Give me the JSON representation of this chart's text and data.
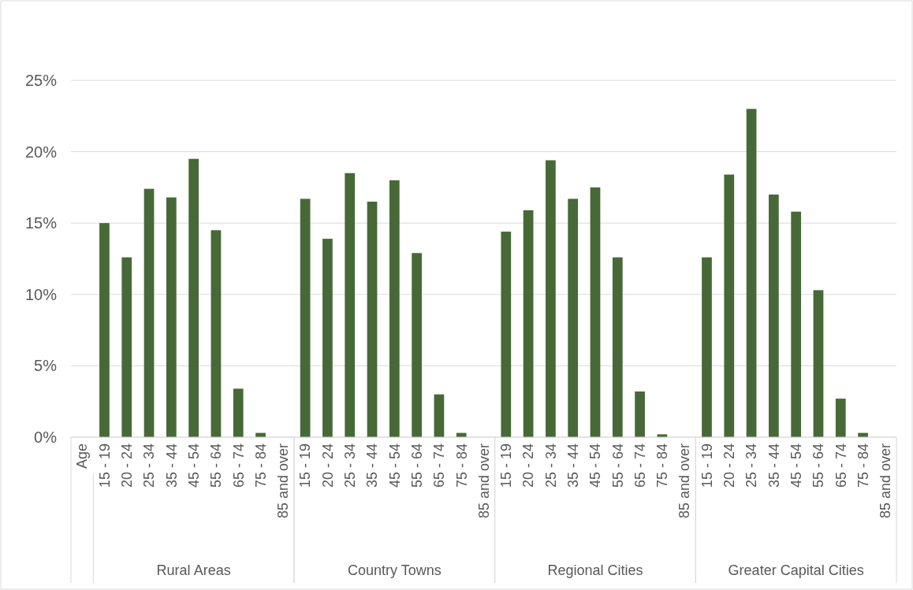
{
  "chart_data": {
    "type": "bar",
    "categories": [
      "Age",
      "15 - 19",
      "20 - 24",
      "25 - 34",
      "35 - 44",
      "45 - 54",
      "55 - 64",
      "65 - 74",
      "75 - 84",
      "85 and over",
      "15 - 19",
      "20 - 24",
      "25 - 34",
      "35 - 44",
      "45 - 54",
      "55 - 64",
      "65 - 74",
      "75 - 84",
      "85 and over",
      "15 - 19",
      "20 - 24",
      "25 - 34",
      "35 - 44",
      "45 - 54",
      "55 - 64",
      "65 - 74",
      "75 - 84",
      "85 and over",
      "15 - 19",
      "20 - 24",
      "25 - 34",
      "35 - 44",
      "45 - 54",
      "55 - 64",
      "65 - 74",
      "75 - 84",
      "85 and over"
    ],
    "values": [
      null,
      15.0,
      12.6,
      17.4,
      16.8,
      19.5,
      14.5,
      3.4,
      0.3,
      0,
      16.7,
      13.9,
      18.5,
      16.5,
      18.0,
      12.9,
      3.0,
      0.3,
      0,
      14.4,
      15.9,
      19.4,
      16.7,
      17.5,
      12.6,
      3.2,
      0.2,
      0,
      12.6,
      18.4,
      23.0,
      17.0,
      15.8,
      10.3,
      2.7,
      0.3,
      0
    ],
    "color": "#476937",
    "ylim": [
      0,
      25
    ],
    "yticks": [
      {
        "value": 0,
        "label": "0%"
      },
      {
        "value": 5,
        "label": "5%"
      },
      {
        "value": 10,
        "label": "10%"
      },
      {
        "value": 15,
        "label": "15%"
      },
      {
        "value": 20,
        "label": "20%"
      },
      {
        "value": 25,
        "label": "25%"
      }
    ],
    "grid": "y",
    "annotations": [
      "Rural Areas",
      "Country Towns",
      "Regional Cities",
      "Greater Capital Cities"
    ]
  }
}
